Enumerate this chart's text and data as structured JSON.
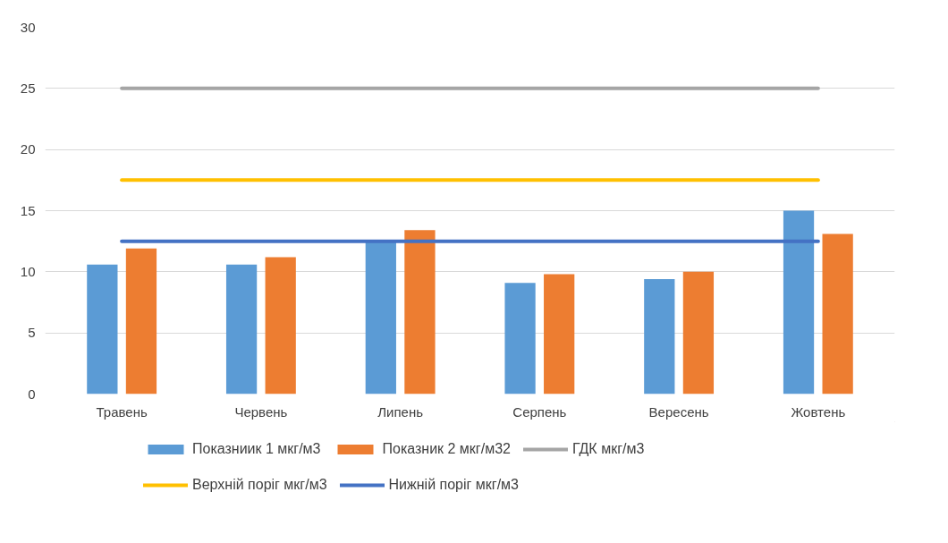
{
  "chart_data": {
    "type": "bar",
    "categories": [
      "Травень",
      "Червень",
      "Липень",
      "Серпень",
      "Вересень",
      "Жовтень"
    ],
    "series": [
      {
        "name": "Показниик 1 мкг/м3",
        "color": "#5b9bd5",
        "values": [
          10.6,
          10.6,
          12.6,
          9.1,
          9.4,
          15.0
        ]
      },
      {
        "name": "Показник 2 мкг/м32",
        "color": "#ed7d31",
        "values": [
          11.9,
          11.2,
          13.4,
          9.8,
          10.0,
          13.1
        ]
      },
      {
        "name": "ГДК мкг/м3",
        "type": "line",
        "color": "#a5a5a5",
        "values": [
          25,
          25,
          25,
          25,
          25,
          25
        ]
      },
      {
        "name": "Верхній поріг мкг/м3",
        "type": "line",
        "color": "#ffc000",
        "values": [
          17.5,
          17.5,
          17.5,
          17.5,
          17.5,
          17.5
        ]
      },
      {
        "name": "Нижній поріг мкг/м3",
        "type": "line",
        "color": "#4472c4",
        "values": [
          12.5,
          12.5,
          12.5,
          12.5,
          12.5,
          12.5
        ]
      }
    ],
    "ylim": [
      0,
      30
    ],
    "yticks": [
      0,
      5,
      10,
      15,
      20,
      25,
      30
    ],
    "grid": "y",
    "legend": "bottom"
  }
}
